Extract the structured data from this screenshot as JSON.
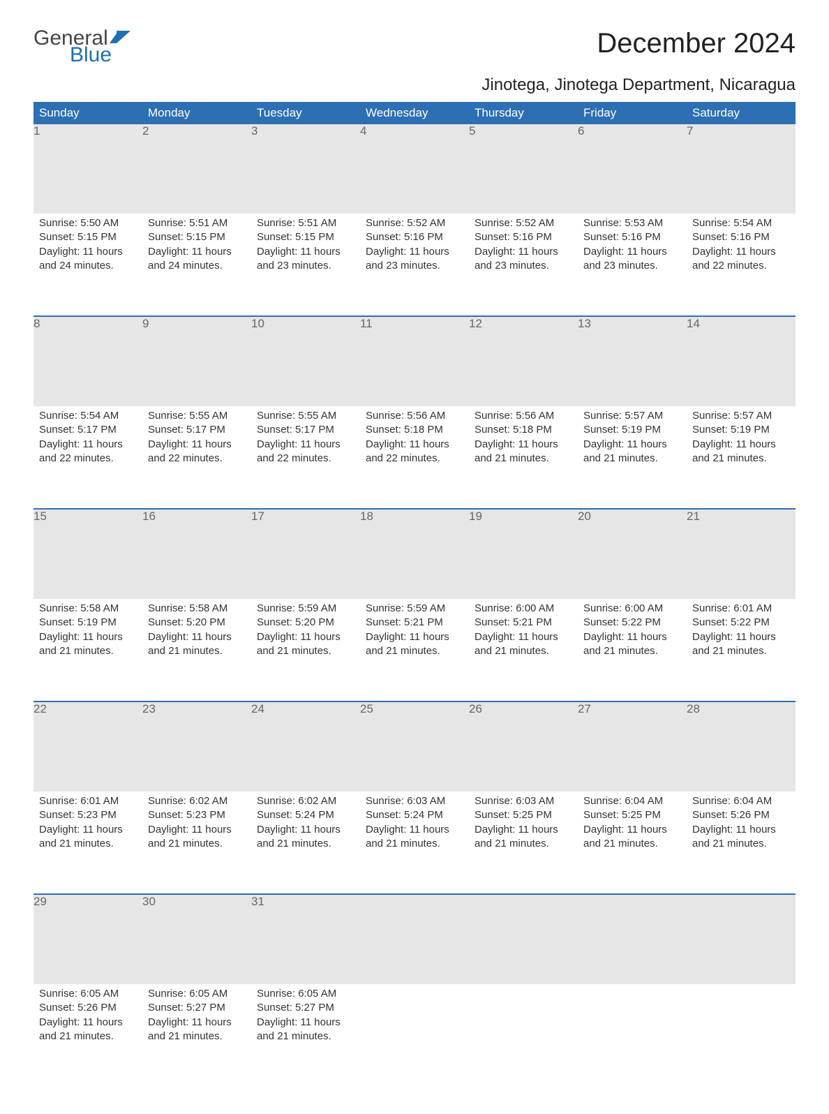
{
  "logo": {
    "part1": "General",
    "part2": "Blue",
    "color_general": "#444444",
    "color_blue": "#1f6fb2"
  },
  "title": "December 2024",
  "location": "Jinotega, Jinotega Department, Nicaragua",
  "colors": {
    "header_bg": "#2d6fb3",
    "header_text": "#ffffff",
    "daynum_bg": "#e6e6e6",
    "daynum_text": "#666666",
    "body_text": "#333333",
    "rule": "#2d6fb3",
    "page_bg": "#ffffff"
  },
  "weekdays": [
    "Sunday",
    "Monday",
    "Tuesday",
    "Wednesday",
    "Thursday",
    "Friday",
    "Saturday"
  ],
  "weeks": [
    [
      {
        "n": "1",
        "sr": "Sunrise: 5:50 AM",
        "ss": "Sunset: 5:15 PM",
        "d1": "Daylight: 11 hours",
        "d2": "and 24 minutes."
      },
      {
        "n": "2",
        "sr": "Sunrise: 5:51 AM",
        "ss": "Sunset: 5:15 PM",
        "d1": "Daylight: 11 hours",
        "d2": "and 24 minutes."
      },
      {
        "n": "3",
        "sr": "Sunrise: 5:51 AM",
        "ss": "Sunset: 5:15 PM",
        "d1": "Daylight: 11 hours",
        "d2": "and 23 minutes."
      },
      {
        "n": "4",
        "sr": "Sunrise: 5:52 AM",
        "ss": "Sunset: 5:16 PM",
        "d1": "Daylight: 11 hours",
        "d2": "and 23 minutes."
      },
      {
        "n": "5",
        "sr": "Sunrise: 5:52 AM",
        "ss": "Sunset: 5:16 PM",
        "d1": "Daylight: 11 hours",
        "d2": "and 23 minutes."
      },
      {
        "n": "6",
        "sr": "Sunrise: 5:53 AM",
        "ss": "Sunset: 5:16 PM",
        "d1": "Daylight: 11 hours",
        "d2": "and 23 minutes."
      },
      {
        "n": "7",
        "sr": "Sunrise: 5:54 AM",
        "ss": "Sunset: 5:16 PM",
        "d1": "Daylight: 11 hours",
        "d2": "and 22 minutes."
      }
    ],
    [
      {
        "n": "8",
        "sr": "Sunrise: 5:54 AM",
        "ss": "Sunset: 5:17 PM",
        "d1": "Daylight: 11 hours",
        "d2": "and 22 minutes."
      },
      {
        "n": "9",
        "sr": "Sunrise: 5:55 AM",
        "ss": "Sunset: 5:17 PM",
        "d1": "Daylight: 11 hours",
        "d2": "and 22 minutes."
      },
      {
        "n": "10",
        "sr": "Sunrise: 5:55 AM",
        "ss": "Sunset: 5:17 PM",
        "d1": "Daylight: 11 hours",
        "d2": "and 22 minutes."
      },
      {
        "n": "11",
        "sr": "Sunrise: 5:56 AM",
        "ss": "Sunset: 5:18 PM",
        "d1": "Daylight: 11 hours",
        "d2": "and 22 minutes."
      },
      {
        "n": "12",
        "sr": "Sunrise: 5:56 AM",
        "ss": "Sunset: 5:18 PM",
        "d1": "Daylight: 11 hours",
        "d2": "and 21 minutes."
      },
      {
        "n": "13",
        "sr": "Sunrise: 5:57 AM",
        "ss": "Sunset: 5:19 PM",
        "d1": "Daylight: 11 hours",
        "d2": "and 21 minutes."
      },
      {
        "n": "14",
        "sr": "Sunrise: 5:57 AM",
        "ss": "Sunset: 5:19 PM",
        "d1": "Daylight: 11 hours",
        "d2": "and 21 minutes."
      }
    ],
    [
      {
        "n": "15",
        "sr": "Sunrise: 5:58 AM",
        "ss": "Sunset: 5:19 PM",
        "d1": "Daylight: 11 hours",
        "d2": "and 21 minutes."
      },
      {
        "n": "16",
        "sr": "Sunrise: 5:58 AM",
        "ss": "Sunset: 5:20 PM",
        "d1": "Daylight: 11 hours",
        "d2": "and 21 minutes."
      },
      {
        "n": "17",
        "sr": "Sunrise: 5:59 AM",
        "ss": "Sunset: 5:20 PM",
        "d1": "Daylight: 11 hours",
        "d2": "and 21 minutes."
      },
      {
        "n": "18",
        "sr": "Sunrise: 5:59 AM",
        "ss": "Sunset: 5:21 PM",
        "d1": "Daylight: 11 hours",
        "d2": "and 21 minutes."
      },
      {
        "n": "19",
        "sr": "Sunrise: 6:00 AM",
        "ss": "Sunset: 5:21 PM",
        "d1": "Daylight: 11 hours",
        "d2": "and 21 minutes."
      },
      {
        "n": "20",
        "sr": "Sunrise: 6:00 AM",
        "ss": "Sunset: 5:22 PM",
        "d1": "Daylight: 11 hours",
        "d2": "and 21 minutes."
      },
      {
        "n": "21",
        "sr": "Sunrise: 6:01 AM",
        "ss": "Sunset: 5:22 PM",
        "d1": "Daylight: 11 hours",
        "d2": "and 21 minutes."
      }
    ],
    [
      {
        "n": "22",
        "sr": "Sunrise: 6:01 AM",
        "ss": "Sunset: 5:23 PM",
        "d1": "Daylight: 11 hours",
        "d2": "and 21 minutes."
      },
      {
        "n": "23",
        "sr": "Sunrise: 6:02 AM",
        "ss": "Sunset: 5:23 PM",
        "d1": "Daylight: 11 hours",
        "d2": "and 21 minutes."
      },
      {
        "n": "24",
        "sr": "Sunrise: 6:02 AM",
        "ss": "Sunset: 5:24 PM",
        "d1": "Daylight: 11 hours",
        "d2": "and 21 minutes."
      },
      {
        "n": "25",
        "sr": "Sunrise: 6:03 AM",
        "ss": "Sunset: 5:24 PM",
        "d1": "Daylight: 11 hours",
        "d2": "and 21 minutes."
      },
      {
        "n": "26",
        "sr": "Sunrise: 6:03 AM",
        "ss": "Sunset: 5:25 PM",
        "d1": "Daylight: 11 hours",
        "d2": "and 21 minutes."
      },
      {
        "n": "27",
        "sr": "Sunrise: 6:04 AM",
        "ss": "Sunset: 5:25 PM",
        "d1": "Daylight: 11 hours",
        "d2": "and 21 minutes."
      },
      {
        "n": "28",
        "sr": "Sunrise: 6:04 AM",
        "ss": "Sunset: 5:26 PM",
        "d1": "Daylight: 11 hours",
        "d2": "and 21 minutes."
      }
    ],
    [
      {
        "n": "29",
        "sr": "Sunrise: 6:05 AM",
        "ss": "Sunset: 5:26 PM",
        "d1": "Daylight: 11 hours",
        "d2": "and 21 minutes."
      },
      {
        "n": "30",
        "sr": "Sunrise: 6:05 AM",
        "ss": "Sunset: 5:27 PM",
        "d1": "Daylight: 11 hours",
        "d2": "and 21 minutes."
      },
      {
        "n": "31",
        "sr": "Sunrise: 6:05 AM",
        "ss": "Sunset: 5:27 PM",
        "d1": "Daylight: 11 hours",
        "d2": "and 21 minutes."
      },
      null,
      null,
      null,
      null
    ]
  ]
}
